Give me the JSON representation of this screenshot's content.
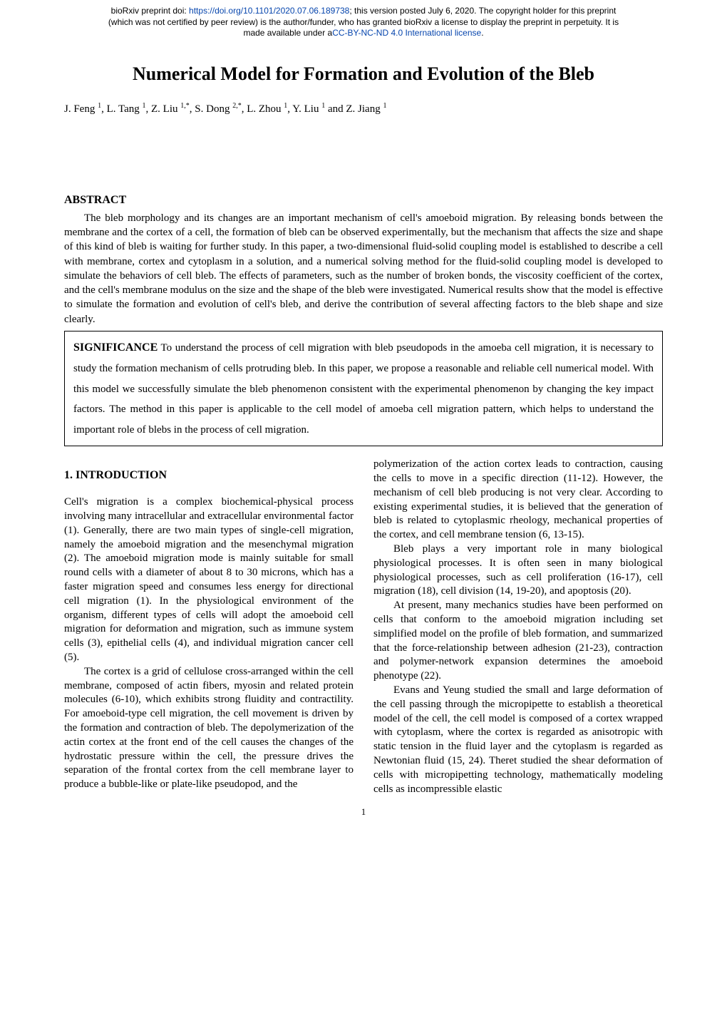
{
  "preprint": {
    "line1_prefix": "bioRxiv preprint doi: ",
    "doi_url": "https://doi.org/10.1101/2020.07.06.189738",
    "line1_suffix": "; this version posted July 6, 2020. The copyright holder for this preprint",
    "line2": "(which was not certified by peer review) is the author/funder, who has granted bioRxiv a license to display the preprint in perpetuity. It is",
    "line3_prefix": "made available under a",
    "license_text": "CC-BY-NC-ND 4.0 International license",
    "line3_suffix": "."
  },
  "title": "Numerical Model for Formation and Evolution of the Bleb",
  "authors": {
    "a1": "J. Feng ",
    "s1": "1",
    "a2": ", L. Tang ",
    "s2": "1",
    "a3": ", Z. Liu ",
    "s3": "1,*",
    "a4": ", S. Dong ",
    "s4": "2,*",
    "a5": ", L. Zhou ",
    "s5": "1",
    "a6": ", Y. Liu ",
    "s6": "1",
    "a7": " and Z. Jiang ",
    "s7": "1"
  },
  "abstract": {
    "heading": "ABSTRACT",
    "body": "The bleb morphology and its changes are an important mechanism of cell's amoeboid migration. By releasing bonds between the membrane and the cortex of a cell, the formation of bleb can be observed experimentally, but the mechanism that affects the size and shape of this kind of bleb is waiting for further study. In this paper, a two-dimensional fluid-solid coupling model is established to describe a cell with membrane, cortex and cytoplasm in a solution, and a numerical solving method for the fluid-solid coupling model is developed to simulate the behaviors of cell bleb. The effects of parameters, such as the number of broken bonds, the viscosity coefficient of the cortex, and the cell's membrane modulus on the size and the shape of the bleb were investigated. Numerical results show that the model is effective to simulate the formation and evolution of cell's bleb, and derive the contribution of several affecting factors to the bleb shape and size clearly."
  },
  "significance": {
    "label": "SIGNIFICANCE",
    "text": " To understand the process of cell migration with bleb pseudopods in the amoeba cell migration, it is necessary to study the formation mechanism of cells protruding bleb. In this paper, we propose a reasonable and reliable cell numerical model. With this model we successfully simulate the bleb phenomenon consistent with the experimental phenomenon by changing the key impact factors. The method in this paper is applicable to the cell model of amoeba cell migration pattern, which helps to understand the important role of blebs in the process of cell migration."
  },
  "intro_heading": "1.  INTRODUCTION",
  "left": {
    "p1": "Cell's migration is a complex biochemical-physical process involving many intracellular and extracellular environmental factor (1). Generally, there are two main types of single-cell migration, namely the amoeboid migration and the mesenchymal migration (2). The amoeboid migration mode is mainly suitable for small round cells with a diameter of about 8 to 30 microns, which has a faster migration speed and consumes less energy for directional cell migration (1). In the physiological environment of the organism, different types of cells will adopt the amoeboid cell migration for deformation and migration, such as immune system cells (3), epithelial cells (4), and individual migration cancer cell (5).",
    "p2": "The cortex is a grid of cellulose cross-arranged within the cell membrane, composed of actin fibers, myosin and related protein molecules (6-10), which exhibits strong fluidity and contractility. For amoeboid-type cell migration, the cell movement is driven by the formation and contraction of bleb. The depolymerization of the actin cortex at the front end of the cell causes the changes of the hydrostatic pressure within the cell, the pressure drives the separation of the frontal cortex from the cell membrane layer to produce a bubble-like or plate-like pseudopod, and the"
  },
  "right": {
    "p1": "polymerization of the action cortex leads to contraction, causing the cells to move in a specific direction (11-12). However, the mechanism of cell bleb producing is not very clear. According to existing experimental studies, it is believed that the generation of bleb is related to cytoplasmic rheology, mechanical properties of the cortex, and cell membrane tension (6, 13-15).",
    "p2": "Bleb plays a very important role in many biological physiological processes. It is often seen in many biological physiological processes, such as cell proliferation (16-17), cell migration (18), cell division (14, 19-20), and apoptosis (20).",
    "p3": "At present, many mechanics studies have been performed on cells that conform to the amoeboid migration including set simplified model on the profile of bleb formation, and summarized that the force-relationship between adhesion (21-23), contraction and polymer-network expansion determines the amoeboid phenotype (22).",
    "p4": "Evans and Yeung studied the small and large deformation of the cell passing through the micropipette to establish a theoretical model of the cell, the cell model is composed of a cortex wrapped with cytoplasm, where the cortex is regarded as anisotropic with static tension in the fluid layer and the cytoplasm is regarded as Newtonian fluid (15, 24). Theret studied the shear deformation of cells with micropipetting technology, mathematically modeling cells as incompressible elastic"
  },
  "page_number": "1"
}
